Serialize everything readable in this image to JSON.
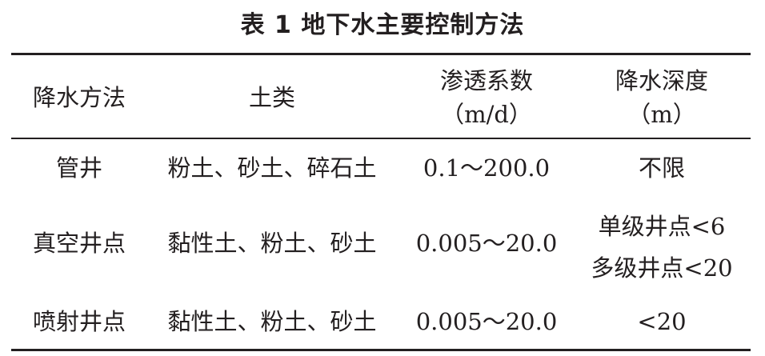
{
  "title": "表 1  地下水主要控制方法",
  "headers": [
    {
      "line1": "降水方法",
      "line2": ""
    },
    {
      "line1": "土类",
      "line2": ""
    },
    {
      "line1": "渗透系数",
      "line2": "（m/d）"
    },
    {
      "line1": "降水深度",
      "line2": "（m）"
    }
  ],
  "rows": [
    {
      "method": "管井",
      "soil": "粉土、砂土、碎石土",
      "permeability": "0.1～200.0",
      "depth": [
        "不限"
      ]
    },
    {
      "method": "真空井点",
      "soil": "黏性土、粉土、砂土",
      "permeability": "0.005～20.0",
      "depth": [
        "单级井点<6",
        "多级井点<20"
      ]
    },
    {
      "method": "喷射井点",
      "soil": "黏性土、粉土、砂土",
      "permeability": "0.005～20.0",
      "depth": [
        "<20"
      ]
    }
  ]
}
